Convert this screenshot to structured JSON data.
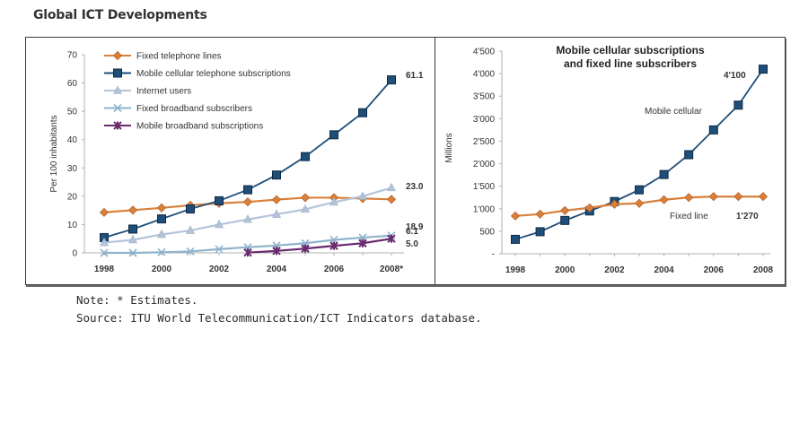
{
  "page": {
    "title": "Global ICT Developments",
    "note": "Note: * Estimates.",
    "source": "Source: ITU World Telecommunication/ICT Indicators database."
  },
  "chart_data": [
    {
      "type": "line",
      "title": "",
      "xlabel": "",
      "ylabel": "Per 100 inhabitants",
      "x": [
        1998,
        1999,
        2000,
        2001,
        2002,
        2003,
        2004,
        2005,
        2006,
        2007,
        2008
      ],
      "xtick_labels": [
        "1998",
        "2000",
        "2002",
        "2004",
        "2006",
        "2008*"
      ],
      "xticks": [
        1998,
        2000,
        2002,
        2004,
        2006,
        2008
      ],
      "ylim": [
        0,
        70
      ],
      "yticks": [
        0,
        10,
        20,
        30,
        40,
        50,
        60,
        70
      ],
      "ytick_labels": [
        "0",
        "10",
        "20",
        "30",
        "40",
        "50",
        "60",
        "70"
      ],
      "grid": false,
      "legend": "top-left",
      "series": [
        {
          "name": "Fixed telephone lines",
          "color": "#d9813a",
          "marker": "diamond",
          "values": [
            14.3,
            15.1,
            15.9,
            16.8,
            17.5,
            18.0,
            18.8,
            19.5,
            19.5,
            19.2,
            18.9
          ],
          "end_label": "18.9"
        },
        {
          "name": "Mobile cellular telephone subscriptions",
          "color": "#1f4e79",
          "marker": "square",
          "values": [
            5.4,
            8.4,
            12.0,
            15.5,
            18.4,
            22.3,
            27.5,
            34.0,
            41.7,
            49.5,
            61.1
          ],
          "end_label": "61.1"
        },
        {
          "name": "Internet users",
          "color": "#b4c4d8",
          "marker": "triangle",
          "values": [
            3.6,
            4.6,
            6.5,
            7.9,
            10.0,
            11.8,
            13.6,
            15.4,
            17.9,
            20.0,
            23.0
          ],
          "end_label": "23.0"
        },
        {
          "name": "Fixed broadband subscribers",
          "color": "#8fb3cc",
          "marker": "x",
          "values": [
            0.0,
            0.0,
            0.2,
            0.5,
            1.3,
            2.0,
            2.6,
            3.4,
            4.6,
            5.4,
            6.1
          ],
          "end_label": "6.1"
        },
        {
          "name": "Mobile broadband subscriptions",
          "color": "#6a2a6e",
          "marker": "star",
          "values": [
            null,
            null,
            null,
            null,
            null,
            0.1,
            0.7,
            1.5,
            2.5,
            3.4,
            5.0
          ],
          "end_label": "5.0"
        }
      ]
    },
    {
      "type": "line",
      "title": "Mobile cellular subscriptions and fixed line subscribers",
      "title_lines": [
        "Mobile cellular subscriptions",
        "and fixed line subscribers"
      ],
      "xlabel": "",
      "ylabel": "Millions",
      "x": [
        1998,
        1999,
        2000,
        2001,
        2002,
        2003,
        2004,
        2005,
        2006,
        2007,
        2008
      ],
      "xticks": [
        1998,
        2000,
        2002,
        2004,
        2006,
        2008
      ],
      "xtick_labels": [
        "1998",
        "2000",
        "2002",
        "2004",
        "2006",
        "2008"
      ],
      "ylim": [
        0,
        4500
      ],
      "yticks": [
        0,
        500,
        1000,
        1500,
        2000,
        2500,
        3000,
        3500,
        4000,
        4500
      ],
      "ytick_labels": [
        "-",
        "500",
        "1'000",
        "1'500",
        "2'000",
        "2'500",
        "3'000",
        "3'500",
        "4'000",
        "4'500"
      ],
      "grid": false,
      "legend": "none",
      "series": [
        {
          "name": "Mobile cellular",
          "color": "#1f4e79",
          "marker": "square",
          "values": [
            320,
            490,
            740,
            950,
            1160,
            1420,
            1760,
            2200,
            2750,
            3300,
            4100
          ],
          "end_label": "4'100",
          "series_label": "Mobile cellular"
        },
        {
          "name": "Fixed line",
          "color": "#d9813a",
          "marker": "diamond",
          "values": [
            840,
            880,
            960,
            1020,
            1100,
            1120,
            1200,
            1250,
            1270,
            1270,
            1270
          ],
          "end_label": "1'270",
          "series_label": "Fixed line"
        }
      ]
    }
  ]
}
